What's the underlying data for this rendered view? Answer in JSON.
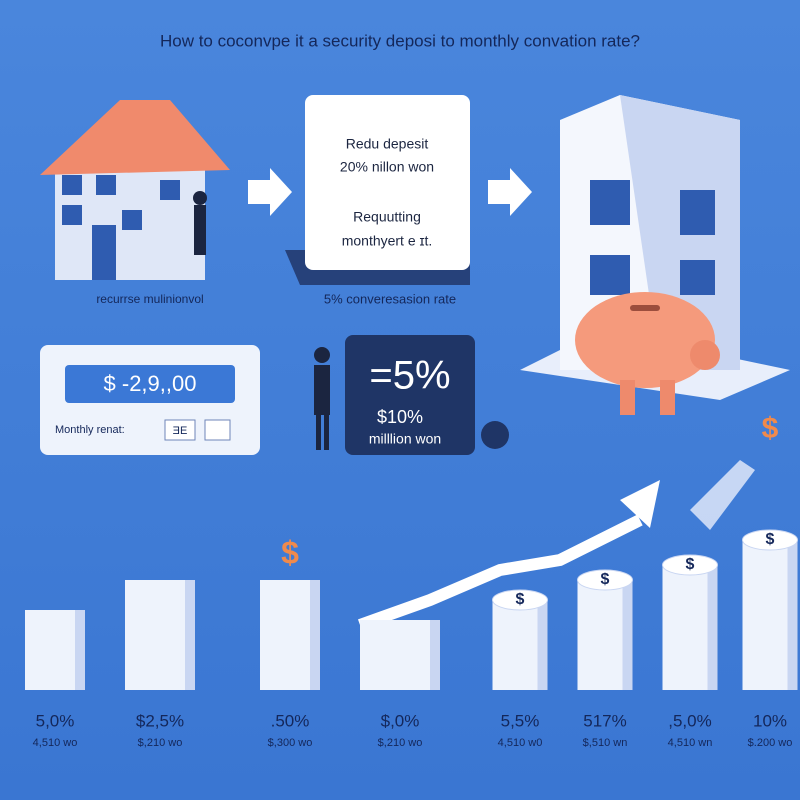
{
  "title": "How to coconvpe it a security deposi to monthly convation rate?",
  "steps": {
    "left_caption": "recurrse mulinionvol",
    "card": [
      "Redu depesit",
      "20% nillon won",
      "Requutting",
      "monthyert e ɪt."
    ],
    "middle_caption": "5% converesasion rate"
  },
  "calculator": {
    "display": "$ -2,9,,00",
    "label": "Monthly renat:",
    "button": "ƎE"
  },
  "rate_tag": {
    "rate": "=5%",
    "amount": "$10%",
    "unit": "milllion won"
  },
  "coin_symbol": "$",
  "columns": [
    {
      "rate": "5,0%",
      "amount": "4,510 wo"
    },
    {
      "rate": "$2,5%",
      "amount": "$,210 wo"
    },
    {
      "rate": ".50%",
      "amount": "$,300 wo"
    },
    {
      "rate": "$,0%",
      "amount": "$,210 wo"
    },
    {
      "rate": "5,5%",
      "amount": "4,510 w0"
    },
    {
      "rate": "517%",
      "amount": "$,510 wn"
    },
    {
      "rate": ",5,0%",
      "amount": "4,510 wn"
    },
    {
      "rate": "10%",
      "amount": "$.200 wo"
    }
  ]
}
